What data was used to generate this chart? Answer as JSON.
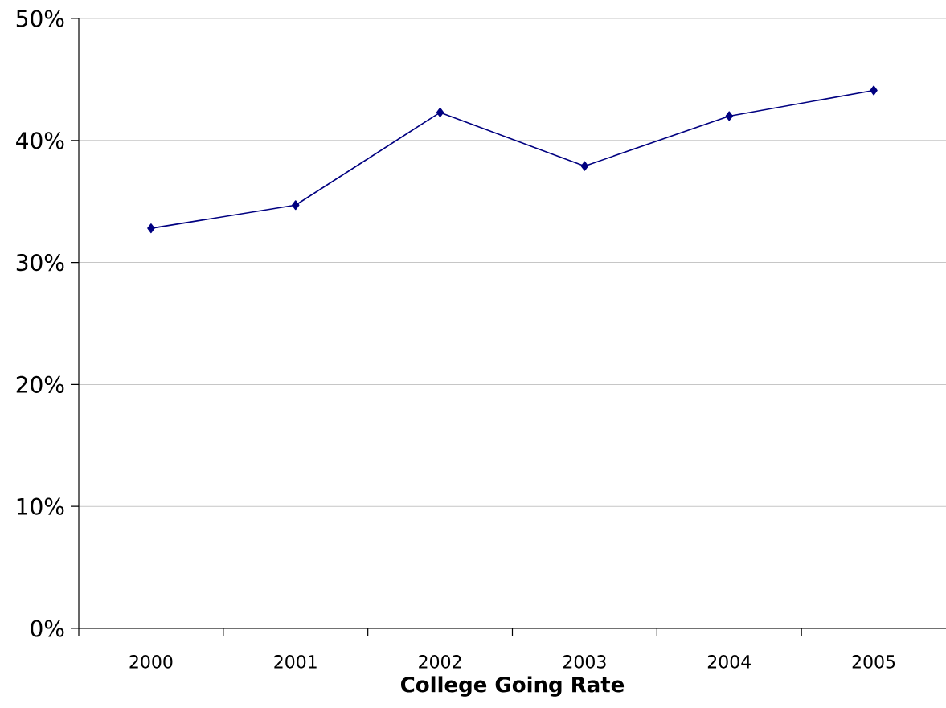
{
  "chart_data": {
    "type": "line",
    "xlabel": "College Going Rate",
    "categories": [
      "2000",
      "2001",
      "2002",
      "2003",
      "2004",
      "2005"
    ],
    "series": [
      {
        "color": "#000080",
        "values": [
          32.8,
          34.7,
          42.3,
          37.9,
          42.0,
          44.1
        ]
      }
    ],
    "ylim": [
      0,
      50
    ],
    "yticks": [
      {
        "value": 0,
        "label": "0%"
      },
      {
        "value": 10,
        "label": "10%"
      },
      {
        "value": 20,
        "label": "20%"
      },
      {
        "value": 30,
        "label": "30%"
      },
      {
        "value": 40,
        "label": "40%"
      },
      {
        "value": 50,
        "label": "50%"
      }
    ],
    "grid": "y",
    "marker": "diamond",
    "line_style": "solid"
  }
}
